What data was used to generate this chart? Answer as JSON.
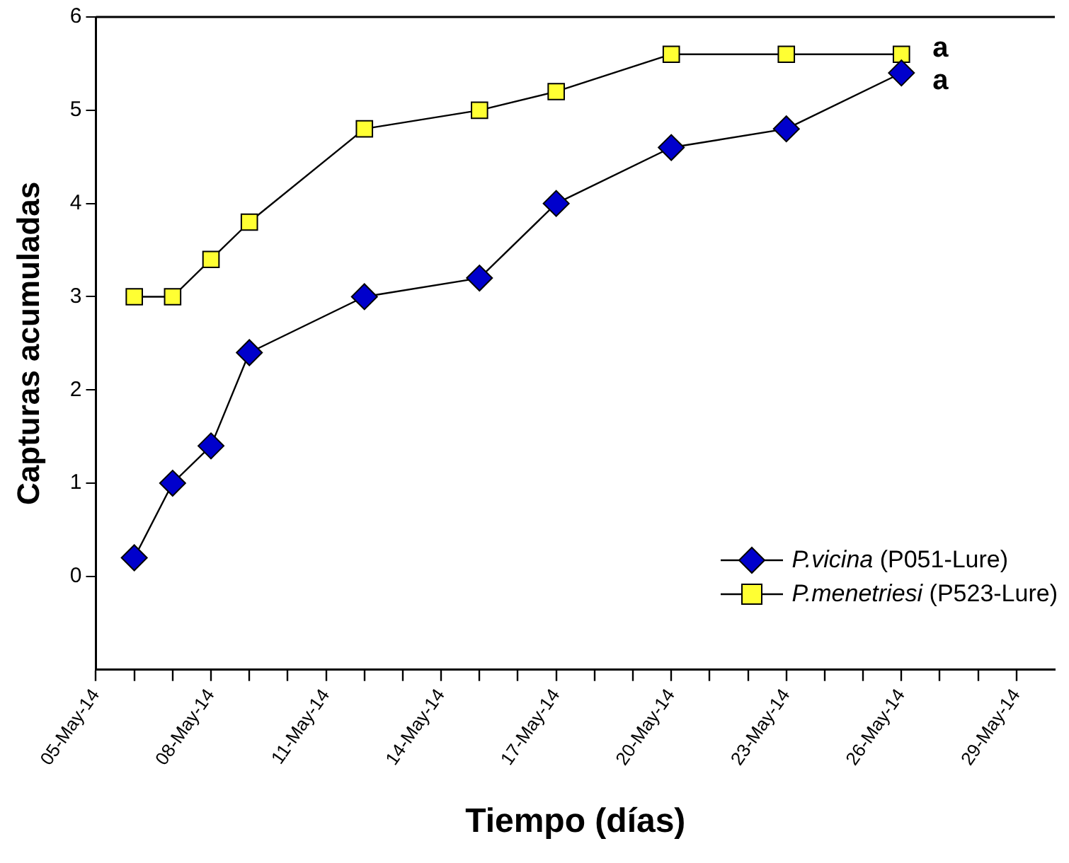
{
  "chart_data": {
    "type": "line",
    "xlabel": "Tiempo (días)",
    "ylabel": "Capturas acumuladas",
    "x": [
      "--05-06",
      "--05-07",
      "--05-08",
      "--05-09",
      "--05-12",
      "--05-15",
      "--05-17",
      "--05-20",
      "--05-23",
      "--05-26"
    ],
    "series": [
      {
        "name": "P.vicina (P051-Lure)",
        "color": "#0000cc",
        "marker": "diamond",
        "values": [
          0.2,
          1,
          1.4,
          2.4,
          3,
          3.2,
          4,
          4.6,
          4.8,
          5.4
        ]
      },
      {
        "name": "P.menetriesi (P523-Lure)",
        "color": "#ffff33",
        "marker": "square",
        "values": [
          3,
          3,
          3.4,
          3.8,
          4.8,
          5,
          5.2,
          5.6,
          5.6,
          5.6
        ]
      }
    ],
    "xlim": [
      "--05-05",
      "--05-30"
    ],
    "xticks": [
      {
        "value": "--05-05",
        "label": "05-May-14"
      },
      {
        "value": "--05-06",
        "label": null
      },
      {
        "value": "--05-07",
        "label": null
      },
      {
        "value": "--05-08",
        "label": "08-May-14"
      },
      {
        "value": "--05-09",
        "label": null
      },
      {
        "value": "--05-10",
        "label": null
      },
      {
        "value": "--05-11",
        "label": "11-May-14"
      },
      {
        "value": "--05-12",
        "label": null
      },
      {
        "value": "--05-13",
        "label": null
      },
      {
        "value": "--05-14",
        "label": "14-May-14"
      },
      {
        "value": "--05-15",
        "label": null
      },
      {
        "value": "--05-16",
        "label": null
      },
      {
        "value": "--05-17",
        "label": "17-May-14"
      },
      {
        "value": "--05-18",
        "label": null
      },
      {
        "value": "--05-19",
        "label": null
      },
      {
        "value": "--05-20",
        "label": "20-May-14"
      },
      {
        "value": "--05-21",
        "label": null
      },
      {
        "value": "--05-22",
        "label": null
      },
      {
        "value": "--05-23",
        "label": "23-May-14"
      },
      {
        "value": "--05-24",
        "label": null
      },
      {
        "value": "--05-25",
        "label": null
      },
      {
        "value": "--05-26",
        "label": "26-May-14"
      },
      {
        "value": "--05-27",
        "label": null
      },
      {
        "value": "--05-28",
        "label": null
      },
      {
        "value": "--05-29",
        "label": "29-May-14"
      }
    ],
    "ylim": [
      -1,
      6
    ],
    "yticks": [
      0,
      1,
      2,
      3,
      4,
      5,
      6
    ],
    "annotations": [
      {
        "text": "a",
        "x": "--05-26",
        "y": 5.6
      },
      {
        "text": "a",
        "x": "--05-26",
        "y": 5.4
      }
    ],
    "grid": false,
    "legend": "bottom right",
    "line_style": "solid"
  }
}
